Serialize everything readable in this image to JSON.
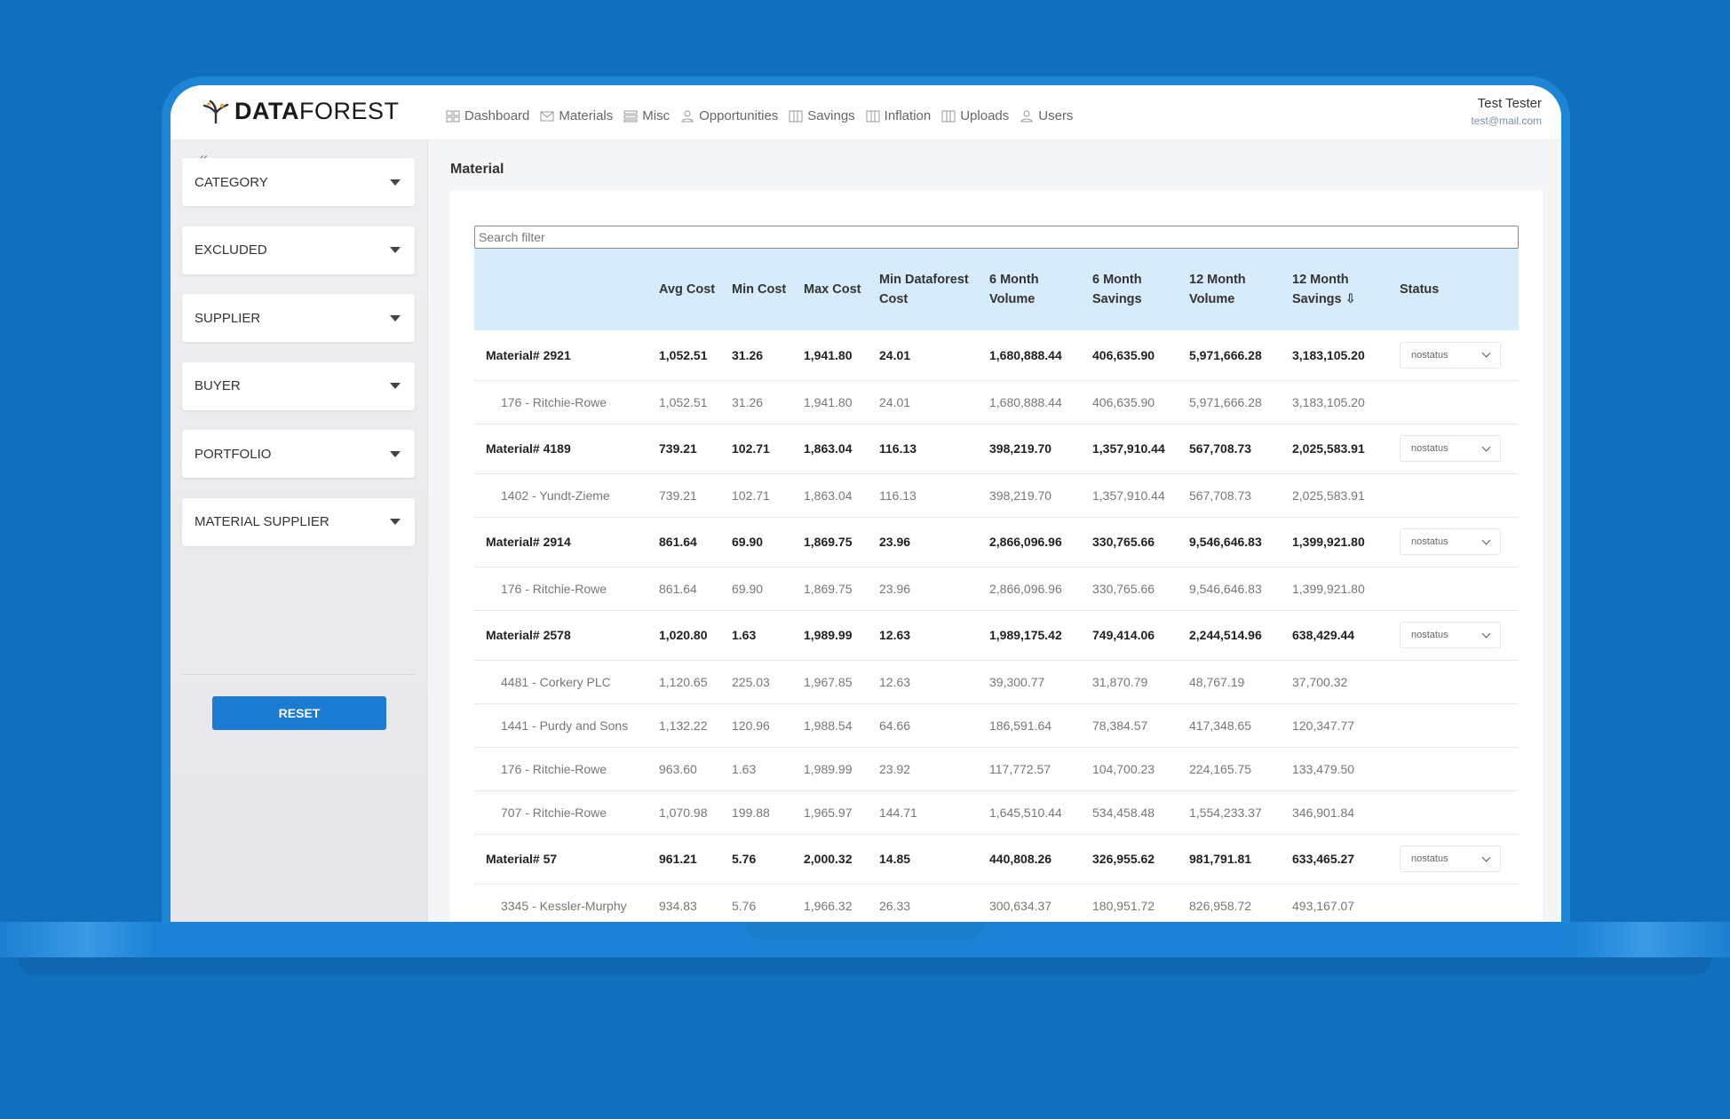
{
  "app": {
    "logo_bold": "DATA",
    "logo_light": "FOREST"
  },
  "nav": [
    {
      "label": "Dashboard",
      "icon": "grid-icon"
    },
    {
      "label": "Materials",
      "icon": "mail-icon"
    },
    {
      "label": "Misc",
      "icon": "list-icon"
    },
    {
      "label": "Opportunities",
      "icon": "user-icon"
    },
    {
      "label": "Savings",
      "icon": "columns-icon"
    },
    {
      "label": "Inflation",
      "icon": "columns-icon"
    },
    {
      "label": "Uploads",
      "icon": "columns-icon"
    },
    {
      "label": "Users",
      "icon": "user-icon"
    }
  ],
  "user": {
    "name": "Test Tester",
    "email": "test@mail.com"
  },
  "sidebar": {
    "collapse_label": "«",
    "filters": [
      "CATEGORY",
      "EXCLUDED",
      "SUPPLIER",
      "BUYER",
      "PORTFOLIO",
      "MATERIAL SUPPLIER"
    ],
    "reset_label": "RESET"
  },
  "page": {
    "title": "Material"
  },
  "search": {
    "placeholder": "Search filter"
  },
  "table": {
    "headers": [
      "",
      "Avg Cost",
      "Min Cost",
      "Max Cost",
      "Min Dataforest Cost",
      "6 Month Volume",
      "6 Month Savings",
      "12 Month Volume",
      "12 Month Savings ⇩",
      "Status"
    ],
    "rows": [
      {
        "type": "material",
        "cells": [
          "Material# 2921",
          "1,052.51",
          "31.26",
          "1,941.80",
          "24.01",
          "1,680,888.44",
          "406,635.90",
          "5,971,666.28",
          "3,183,105.20"
        ],
        "status": "nostatus"
      },
      {
        "type": "supplier",
        "cells": [
          "176 - Ritchie-Rowe",
          "1,052.51",
          "31.26",
          "1,941.80",
          "24.01",
          "1,680,888.44",
          "406,635.90",
          "5,971,666.28",
          "3,183,105.20"
        ]
      },
      {
        "type": "material",
        "cells": [
          "Material# 4189",
          "739.21",
          "102.71",
          "1,863.04",
          "116.13",
          "398,219.70",
          "1,357,910.44",
          "567,708.73",
          "2,025,583.91"
        ],
        "status": "nostatus"
      },
      {
        "type": "supplier",
        "cells": [
          "1402 - Yundt-Zieme",
          "739.21",
          "102.71",
          "1,863.04",
          "116.13",
          "398,219.70",
          "1,357,910.44",
          "567,708.73",
          "2,025,583.91"
        ]
      },
      {
        "type": "material",
        "cells": [
          "Material# 2914",
          "861.64",
          "69.90",
          "1,869.75",
          "23.96",
          "2,866,096.96",
          "330,765.66",
          "9,546,646.83",
          "1,399,921.80"
        ],
        "status": "nostatus"
      },
      {
        "type": "supplier",
        "cells": [
          "176 - Ritchie-Rowe",
          "861.64",
          "69.90",
          "1,869.75",
          "23.96",
          "2,866,096.96",
          "330,765.66",
          "9,546,646.83",
          "1,399,921.80"
        ]
      },
      {
        "type": "material",
        "cells": [
          "Material# 2578",
          "1,020.80",
          "1.63",
          "1,989.99",
          "12.63",
          "1,989,175.42",
          "749,414.06",
          "2,244,514.96",
          "638,429.44"
        ],
        "status": "nostatus"
      },
      {
        "type": "supplier",
        "cells": [
          "4481 - Corkery PLC",
          "1,120.65",
          "225.03",
          "1,967.85",
          "12.63",
          "39,300.77",
          "31,870.79",
          "48,767.19",
          "37,700.32"
        ]
      },
      {
        "type": "supplier",
        "cells": [
          "1441 - Purdy and Sons",
          "1,132.22",
          "120.96",
          "1,988.54",
          "64.66",
          "186,591.64",
          "78,384.57",
          "417,348.65",
          "120,347.77"
        ]
      },
      {
        "type": "supplier",
        "cells": [
          "176 - Ritchie-Rowe",
          "963.60",
          "1.63",
          "1,989.99",
          "23.92",
          "117,772.57",
          "104,700.23",
          "224,165.75",
          "133,479.50"
        ]
      },
      {
        "type": "supplier",
        "cells": [
          "707 - Ritchie-Rowe",
          "1,070.98",
          "199.88",
          "1,965.97",
          "144.71",
          "1,645,510.44",
          "534,458.48",
          "1,554,233.37",
          "346,901.84"
        ]
      },
      {
        "type": "material",
        "cells": [
          "Material# 57",
          "961.21",
          "5.76",
          "2,000.32",
          "14.85",
          "440,808.26",
          "326,955.62",
          "981,791.81",
          "633,465.27"
        ],
        "status": "nostatus"
      },
      {
        "type": "supplier",
        "cells": [
          "3345 - Kessler-Murphy",
          "934.83",
          "5.76",
          "1,966.32",
          "26.33",
          "300,634.37",
          "180,951.72",
          "826,958.72",
          "493,167.07"
        ]
      }
    ]
  }
}
